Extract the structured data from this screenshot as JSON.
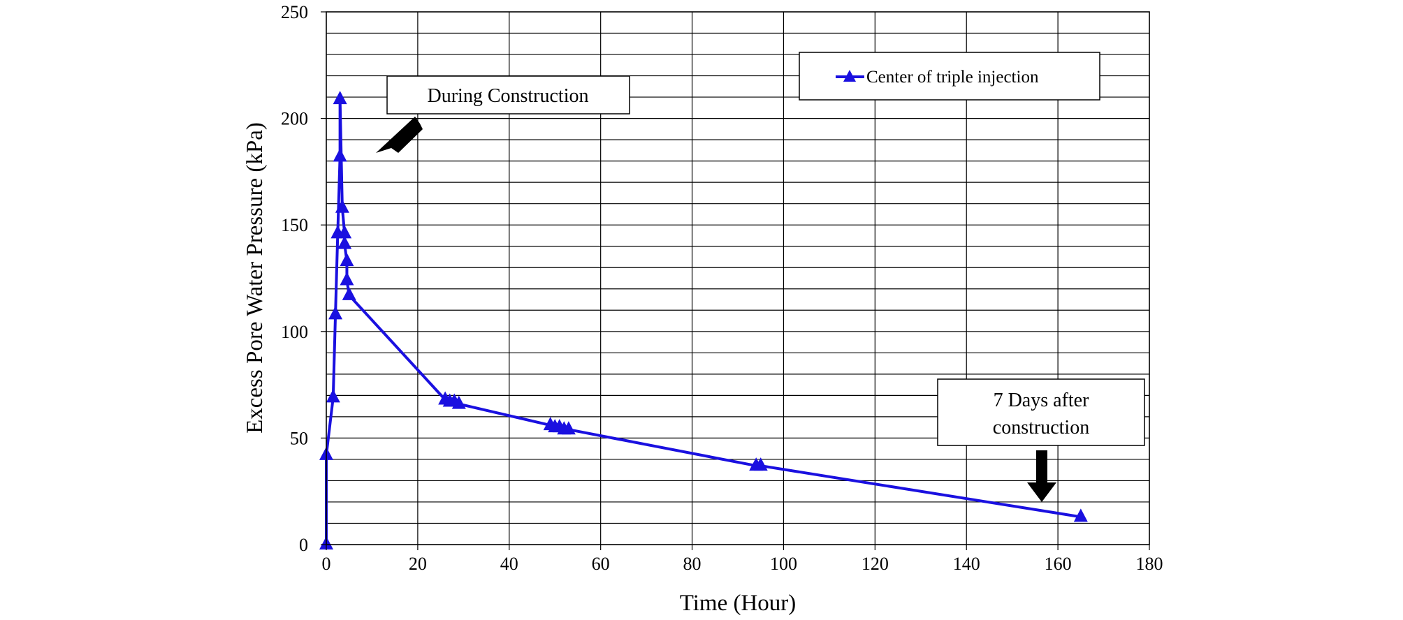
{
  "chart_data": {
    "type": "line",
    "xlabel": "Time (Hour)",
    "ylabel": "Excess Pore Water Pressure (kPa)",
    "xlim": [
      0,
      180
    ],
    "ylim": [
      0,
      250
    ],
    "x_ticks": [
      0,
      20,
      40,
      60,
      80,
      100,
      120,
      140,
      160,
      180
    ],
    "y_ticks": [
      0,
      50,
      100,
      150,
      200,
      250
    ],
    "x_tick_labels": [
      "0",
      "20",
      "40",
      "60",
      "80",
      "100",
      "120",
      "140",
      "160",
      "180"
    ],
    "y_tick_labels": [
      "0",
      "50",
      "100",
      "150",
      "200",
      "250"
    ],
    "grid": true,
    "minor_y_gridlines_per_major": 5,
    "legend": {
      "placement": "top-right"
    },
    "series": [
      {
        "name": "Center of triple injection",
        "color": "#1a10e0",
        "marker": "triangle",
        "x": [
          0,
          0,
          1.5,
          2,
          2.5,
          3,
          3,
          3.5,
          4,
          4,
          4.5,
          4.5,
          5,
          26,
          27,
          28,
          29,
          49,
          50,
          51,
          52,
          53,
          94,
          95,
          165
        ],
        "y": [
          0,
          42,
          69,
          108,
          146,
          182,
          209,
          158,
          146,
          141,
          133,
          124,
          117,
          68,
          67,
          67,
          66,
          56,
          55,
          55,
          54,
          54,
          37,
          37,
          13
        ]
      }
    ],
    "annotations": [
      {
        "id": "during",
        "lines": [
          "During Construction"
        ]
      },
      {
        "id": "after",
        "lines": [
          "7 Days after",
          "construction"
        ]
      }
    ]
  }
}
